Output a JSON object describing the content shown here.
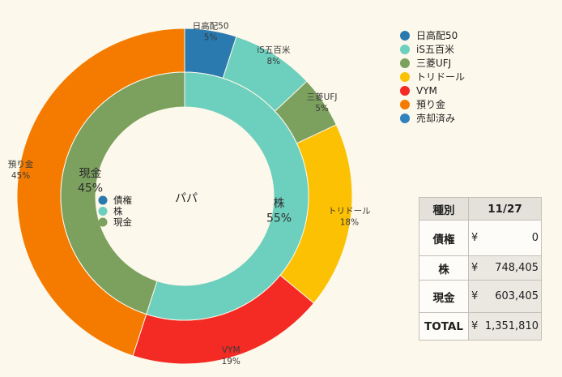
{
  "theme": {
    "background": "#fcf8eb"
  },
  "chart_data": {
    "type": "pie",
    "center_label": "パパ",
    "outer_ring": [
      {
        "label": "日高配50",
        "value": 5,
        "display": "5%",
        "color": "#2a7ab0"
      },
      {
        "label": "iS五百米",
        "value": 8,
        "display": "8%",
        "color": "#6dcfbd"
      },
      {
        "label": "三菱UFJ",
        "value": 5,
        "display": "5%",
        "color": "#7ca05e"
      },
      {
        "label": "トリドール",
        "value": 18,
        "display": "18%",
        "color": "#fbc102"
      },
      {
        "label": "VYM",
        "value": 19,
        "display": "19%",
        "color": "#f42b25"
      },
      {
        "label": "預り金",
        "value": 45,
        "display": "45%",
        "color": "#f47b00"
      },
      {
        "label": "売却済み",
        "value": 0,
        "color": "#3082bd"
      }
    ],
    "inner_ring": [
      {
        "label": "債権",
        "value": 0,
        "color": "#2a7ab0"
      },
      {
        "label": "株",
        "value": 55,
        "display": "55%",
        "color": "#6dcfbd"
      },
      {
        "label": "現金",
        "value": 45,
        "display": "45%",
        "color": "#7ca05e"
      }
    ]
  },
  "table": {
    "header": {
      "type": "種別",
      "date": "11/27"
    },
    "rows": [
      {
        "label": "債権",
        "currency": "¥",
        "amount": "0"
      },
      {
        "label": "株",
        "currency": "¥",
        "amount": "748,405"
      },
      {
        "label": "現金",
        "currency": "¥",
        "amount": "603,405"
      },
      {
        "label": "TOTAL",
        "currency": "¥",
        "amount": "1,351,810"
      }
    ]
  }
}
